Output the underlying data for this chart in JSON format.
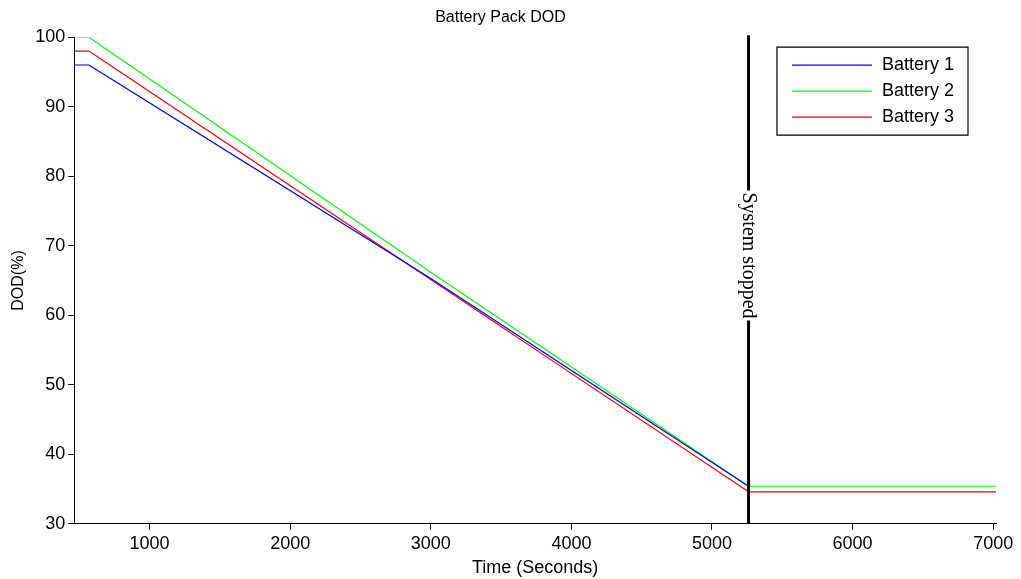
{
  "chart_data": {
    "type": "line",
    "title": "Battery Pack DOD",
    "xlabel": "Time (Seconds)",
    "ylabel": "DOD(%)",
    "xlim": [
      464,
      7020
    ],
    "ylim": [
      30,
      100
    ],
    "xticks": [
      1000,
      2000,
      3000,
      4000,
      5000,
      6000,
      7000
    ],
    "yticks": [
      30,
      40,
      50,
      60,
      70,
      80,
      90,
      100
    ],
    "grid": false,
    "legend": "top right",
    "marker": "none",
    "line_style": "solid",
    "series": [
      {
        "name": "Battery 1",
        "color": "#0000ff",
        "x": [
          464,
          568,
          3000,
          5260
        ],
        "values": [
          96,
          96,
          65.3,
          35.4
        ]
      },
      {
        "name": "Battery 2",
        "color": "#00ff00",
        "x": [
          464,
          568,
          3000,
          5260,
          7020
        ],
        "values": [
          100,
          100,
          66.2,
          35.4,
          35.4
        ]
      },
      {
        "name": "Battery 3",
        "color": "#ff0000",
        "x": [
          464,
          568,
          5260,
          7020
        ],
        "values": [
          98,
          98,
          34.6,
          34.6
        ]
      }
    ],
    "ref_lines": [
      {
        "axis": "x",
        "value": 5260,
        "label": "System stopped",
        "color": "#000000",
        "line_style": "solid"
      }
    ]
  }
}
